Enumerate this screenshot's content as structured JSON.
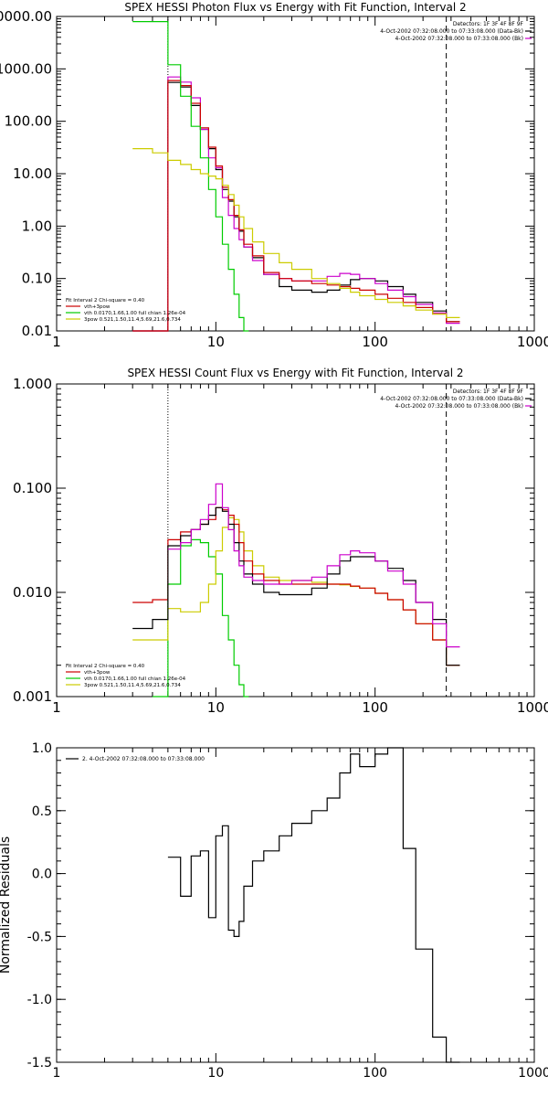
{
  "chart_data": [
    {
      "type": "line",
      "title": "SPEX HESSI Photon Flux vs Energy with Fit Function, Interval 2",
      "x_scale": "log",
      "y_scale": "log",
      "xlim": [
        1,
        1000
      ],
      "ylim": [
        0.01,
        10000
      ],
      "x_ticks": [
        "1",
        "10",
        "100",
        "1000"
      ],
      "y_ticks": [
        "10000.00",
        "1000.00",
        "100.00",
        "10.00",
        "1.00",
        "0.10",
        "0.01"
      ],
      "vlines": [
        {
          "x": 5,
          "style": "dotted"
        },
        {
          "x": 280,
          "style": "dashed"
        }
      ],
      "info_box": [
        "Detectors: 1F 3F 4F 8F 9F",
        "4-Oct-2002 07:32:08.000 to 07:33:08.000 (Data-Bk)",
        "4-Oct-2002 07:32:08.000 to 07:33:08.000 (Bk)"
      ],
      "fit_text": [
        "Fit Interval 2   Chi-square = 0.40",
        "vth+3pow",
        "vth 0.0170,1.66,1.00  full chian 1.26e-04",
        "3pow 0.521,1.50,11.4,5.69,21.6,0.734"
      ],
      "series": [
        {
          "color": "#000000",
          "x": [
            3.0,
            5.0,
            6.0,
            7.0,
            8.0,
            9.0,
            10.0,
            11.0,
            12.0,
            13.0,
            14.0,
            15.0,
            17.0,
            20.0,
            25.0,
            30.0,
            40.0,
            50.0,
            60.0,
            70.0,
            80.0,
            100.0,
            120.0,
            150.0,
            180.0,
            230.0,
            280.0
          ],
          "y": [
            0.01,
            550,
            450,
            200,
            70,
            30,
            12,
            5,
            3,
            1.5,
            0.8,
            0.4,
            0.25,
            0.12,
            0.07,
            0.06,
            0.055,
            0.06,
            0.075,
            0.095,
            0.1,
            0.09,
            0.07,
            0.05,
            0.035,
            0.024,
            0.015
          ]
        },
        {
          "color": "#cc00cc",
          "x": [
            3.0,
            5.0,
            6.0,
            7.0,
            8.0,
            9.0,
            10.0,
            11.0,
            12.0,
            13.0,
            14.0,
            15.0,
            17.0,
            20.0,
            25.0,
            30.0,
            40.0,
            50.0,
            60.0,
            70.0,
            80.0,
            100.0,
            120.0,
            150.0,
            180.0,
            230.0,
            280.0
          ],
          "y": [
            0.01,
            700,
            560,
            280,
            70,
            20,
            13,
            3.5,
            1.6,
            0.9,
            0.55,
            0.4,
            0.22,
            0.12,
            0.1,
            0.09,
            0.09,
            0.11,
            0.125,
            0.12,
            0.1,
            0.08,
            0.06,
            0.045,
            0.032,
            0.022,
            0.014
          ]
        },
        {
          "color": "#cc0000",
          "x": [
            3.0,
            5.0,
            6.0,
            7.0,
            8.0,
            9.0,
            10.0,
            11.0,
            12.0,
            13.0,
            14.0,
            15.0,
            17.0,
            20.0,
            25.0,
            30.0,
            40.0,
            50.0,
            60.0,
            70.0,
            80.0,
            100.0,
            120.0,
            150.0,
            180.0,
            230.0,
            280.0
          ],
          "y": [
            0.01,
            600,
            480,
            220,
            75,
            32,
            14,
            5.5,
            3.2,
            1.6,
            0.85,
            0.45,
            0.27,
            0.13,
            0.1,
            0.09,
            0.08,
            0.075,
            0.07,
            0.065,
            0.06,
            0.05,
            0.042,
            0.035,
            0.028,
            0.021,
            0.015
          ]
        },
        {
          "color": "#00cc00",
          "x": [
            3.0,
            4.0,
            5.0,
            6.0,
            7.0,
            8.0,
            9.0,
            10.0,
            11.0,
            12.0,
            13.0,
            14.0,
            15.0
          ],
          "y": [
            8000,
            8000,
            1200,
            300,
            80,
            20,
            5,
            1.5,
            0.45,
            0.15,
            0.05,
            0.018,
            0.01
          ]
        },
        {
          "color": "#cccc00",
          "x": [
            3.0,
            4.0,
            5.0,
            6.0,
            7.0,
            8.0,
            9.0,
            10.0,
            11.0,
            12.0,
            13.0,
            14.0,
            15.0,
            17.0,
            20.0,
            25.0,
            30.0,
            40.0,
            50.0,
            60.0,
            70.0,
            80.0,
            100.0,
            120.0,
            150.0,
            180.0,
            230.0,
            280.0
          ],
          "y": [
            30,
            25,
            18,
            15,
            12,
            10,
            9,
            8,
            6,
            4,
            2.5,
            1.5,
            0.9,
            0.5,
            0.3,
            0.2,
            0.15,
            0.1,
            0.08,
            0.065,
            0.055,
            0.047,
            0.04,
            0.035,
            0.03,
            0.025,
            0.021,
            0.018
          ]
        }
      ]
    },
    {
      "type": "line",
      "title": "SPEX HESSI Count Flux vs Energy with Fit Function, Interval 2",
      "x_scale": "log",
      "y_scale": "log",
      "xlim": [
        1,
        1000
      ],
      "ylim": [
        0.001,
        1
      ],
      "x_ticks": [
        "1",
        "10",
        "100",
        "1000"
      ],
      "y_ticks": [
        "1.000",
        "0.100",
        "0.010",
        "0.001"
      ],
      "vlines": [
        {
          "x": 5,
          "style": "dotted"
        },
        {
          "x": 280,
          "style": "dashed"
        }
      ],
      "info_box": [
        "Detectors: 1F 3F 4F 8F 9F",
        "4-Oct-2002 07:32:08.000 to 07:33:08.000 (Data-Bk)",
        "4-Oct-2002 07:32:08.000 to 07:33:08.000 (Bk)"
      ],
      "fit_text": [
        "Fit Interval 2   Chi-square = 0.40",
        "vth+3pow",
        "vth 0.0170,1.66,1.00  full chian 1.26e-04",
        "3pow 0.521,1.50,11.4,5.69,21.6,0.734"
      ],
      "series": [
        {
          "color": "#00cc00",
          "x": [
            4.0,
            5.0,
            6.0,
            7.0,
            8.0,
            9.0,
            10.0,
            11.0,
            12.0,
            13.0,
            14.0,
            15.0
          ],
          "y": [
            0.001,
            0.012,
            0.028,
            0.032,
            0.03,
            0.022,
            0.015,
            0.006,
            0.0035,
            0.002,
            0.0013,
            0.001
          ]
        },
        {
          "color": "#cccc00",
          "x": [
            3.0,
            4.0,
            5.0,
            6.0,
            7.0,
            8.0,
            9.0,
            10.0,
            11.0,
            12.0,
            13.0,
            14.0,
            15.0,
            17.0,
            20.0,
            25.0,
            30.0,
            40.0,
            50.0,
            60.0,
            70.0,
            80.0,
            100.0,
            120.0,
            150.0,
            180.0,
            230.0,
            280.0
          ],
          "y": [
            0.0035,
            0.0035,
            0.007,
            0.0065,
            0.0065,
            0.008,
            0.012,
            0.025,
            0.042,
            0.052,
            0.05,
            0.038,
            0.025,
            0.018,
            0.014,
            0.013,
            0.013,
            0.0125,
            0.012,
            0.0118,
            0.0114,
            0.011,
            0.0098,
            0.0085,
            0.0068,
            0.005,
            0.0035,
            0.002
          ]
        },
        {
          "color": "#cc0000",
          "x": [
            3.0,
            4.0,
            5.0,
            6.0,
            7.0,
            8.0,
            9.0,
            10.0,
            11.0,
            12.0,
            13.0,
            14.0,
            15.0,
            17.0,
            20.0,
            25.0,
            30.0,
            40.0,
            50.0,
            60.0,
            70.0,
            80.0,
            100.0,
            120.0,
            150.0,
            180.0,
            230.0,
            280.0
          ],
          "y": [
            0.008,
            0.0085,
            0.032,
            0.038,
            0.04,
            0.045,
            0.05,
            0.065,
            0.062,
            0.055,
            0.045,
            0.03,
            0.02,
            0.015,
            0.013,
            0.012,
            0.012,
            0.012,
            0.012,
            0.012,
            0.0115,
            0.011,
            0.0098,
            0.0085,
            0.0068,
            0.005,
            0.0035,
            0.002
          ]
        },
        {
          "color": "#000000",
          "x": [
            3.0,
            4.0,
            5.0,
            6.0,
            7.0,
            8.0,
            9.0,
            10.0,
            11.0,
            12.0,
            13.0,
            14.0,
            15.0,
            17.0,
            20.0,
            25.0,
            30.0,
            40.0,
            50.0,
            60.0,
            70.0,
            80.0,
            100.0,
            120.0,
            150.0,
            180.0,
            230.0,
            280.0
          ],
          "y": [
            0.0045,
            0.0055,
            0.028,
            0.035,
            0.04,
            0.045,
            0.055,
            0.065,
            0.06,
            0.045,
            0.03,
            0.02,
            0.015,
            0.012,
            0.01,
            0.0095,
            0.0095,
            0.011,
            0.015,
            0.02,
            0.022,
            0.022,
            0.02,
            0.017,
            0.013,
            0.008,
            0.0055,
            0.002
          ]
        },
        {
          "color": "#cc00cc",
          "x": [
            5.0,
            6.0,
            7.0,
            8.0,
            9.0,
            10.0,
            11.0,
            12.0,
            13.0,
            14.0,
            15.0,
            17.0,
            20.0,
            25.0,
            30.0,
            40.0,
            50.0,
            60.0,
            70.0,
            80.0,
            100.0,
            120.0,
            150.0,
            180.0,
            230.0,
            280.0
          ],
          "y": [
            0.026,
            0.03,
            0.04,
            0.05,
            0.07,
            0.11,
            0.065,
            0.04,
            0.025,
            0.018,
            0.014,
            0.013,
            0.012,
            0.012,
            0.013,
            0.014,
            0.018,
            0.023,
            0.025,
            0.024,
            0.02,
            0.016,
            0.012,
            0.008,
            0.005,
            0.003
          ]
        }
      ]
    },
    {
      "type": "line",
      "title": "",
      "ylabel": "Normalized Residuals",
      "x_scale": "log",
      "xlim": [
        1,
        1000
      ],
      "ylim": [
        -1.5,
        1.0
      ],
      "x_ticks": [
        "1",
        "10",
        "100",
        "1000"
      ],
      "y_ticks": [
        "1.0",
        "0.5",
        "0.0",
        "-0.5",
        "-1.0",
        "-1.5"
      ],
      "legend": "2. 4-Oct-2002 07:32:08.000 to 07:33:08.000",
      "series": [
        {
          "color": "#000000",
          "x": [
            5.0,
            6.0,
            7.0,
            8.0,
            9.0,
            10.0,
            11.0,
            12.0,
            13.0,
            14.0,
            15.0,
            17.0,
            20.0,
            25.0,
            30.0,
            40.0,
            50.0,
            60.0,
            70.0,
            80.0,
            100.0,
            120.0,
            150.0,
            180.0,
            230.0,
            280.0
          ],
          "y": [
            0.13,
            -0.18,
            0.14,
            0.18,
            -0.35,
            0.3,
            0.38,
            -0.45,
            -0.5,
            -0.38,
            -0.1,
            0.1,
            0.18,
            0.3,
            0.4,
            0.5,
            0.6,
            0.8,
            0.95,
            0.85,
            0.95,
            1.0,
            0.2,
            -0.6,
            -1.3,
            -1.5
          ]
        }
      ]
    }
  ]
}
